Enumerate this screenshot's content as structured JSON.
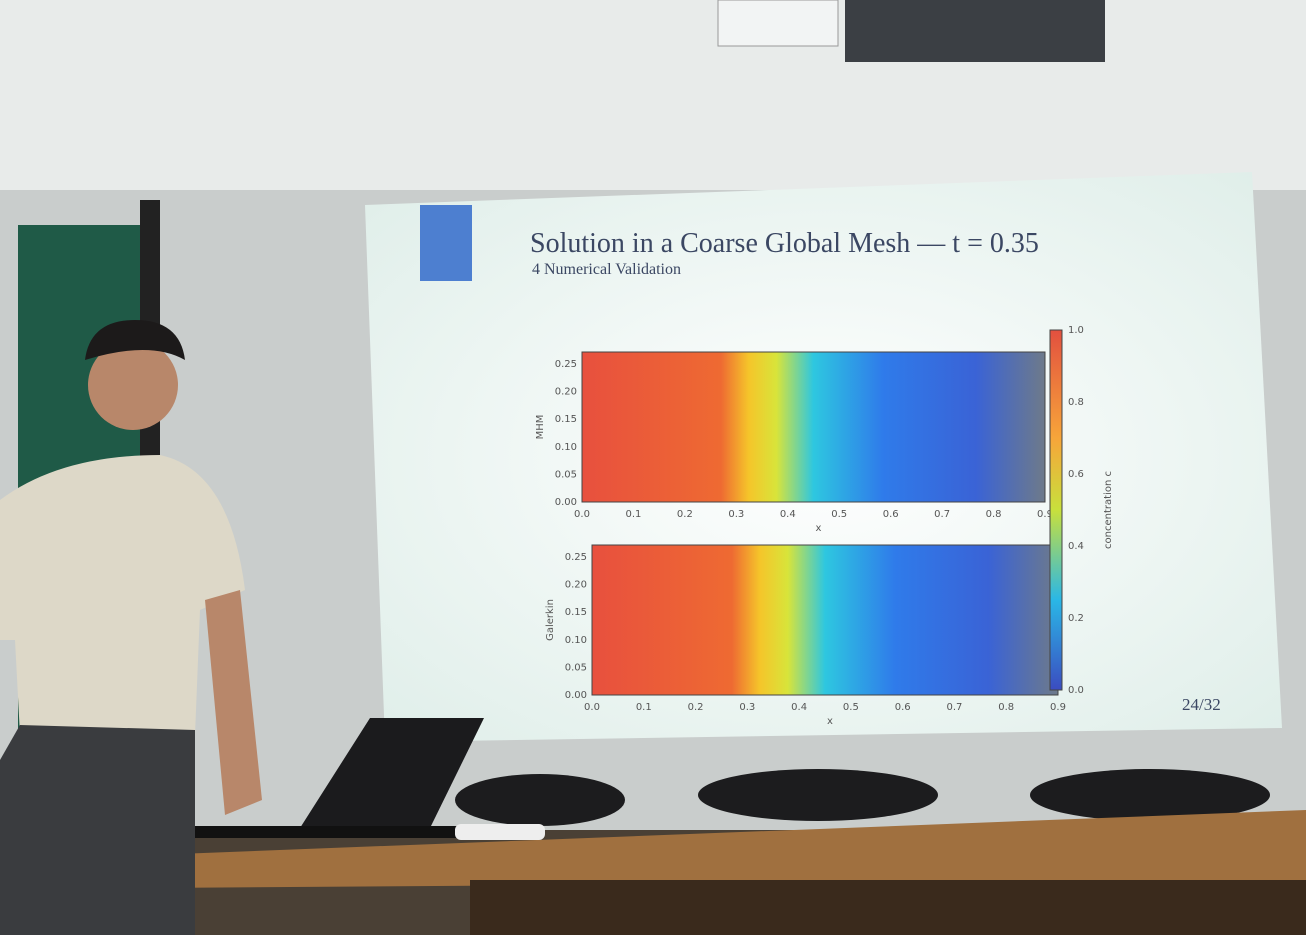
{
  "slide": {
    "title": "Solution in a Coarse Global Mesh — t = 0.35",
    "subtitle": "4 Numerical Validation",
    "page": "24/32"
  },
  "panels": [
    {
      "ylabel": "MHM",
      "xlabel": "x"
    },
    {
      "ylabel": "Galerkin",
      "xlabel": "x"
    }
  ],
  "xticks": [
    "0.0",
    "0.1",
    "0.2",
    "0.3",
    "0.4",
    "0.5",
    "0.6",
    "0.7",
    "0.8",
    "0.9"
  ],
  "yticks": [
    "0.00",
    "0.05",
    "0.10",
    "0.15",
    "0.20",
    "0.25"
  ],
  "colorbar": {
    "label": "concentration c",
    "ticks": [
      "0.0",
      "0.2",
      "0.4",
      "0.6",
      "0.8",
      "1.0"
    ]
  }
}
